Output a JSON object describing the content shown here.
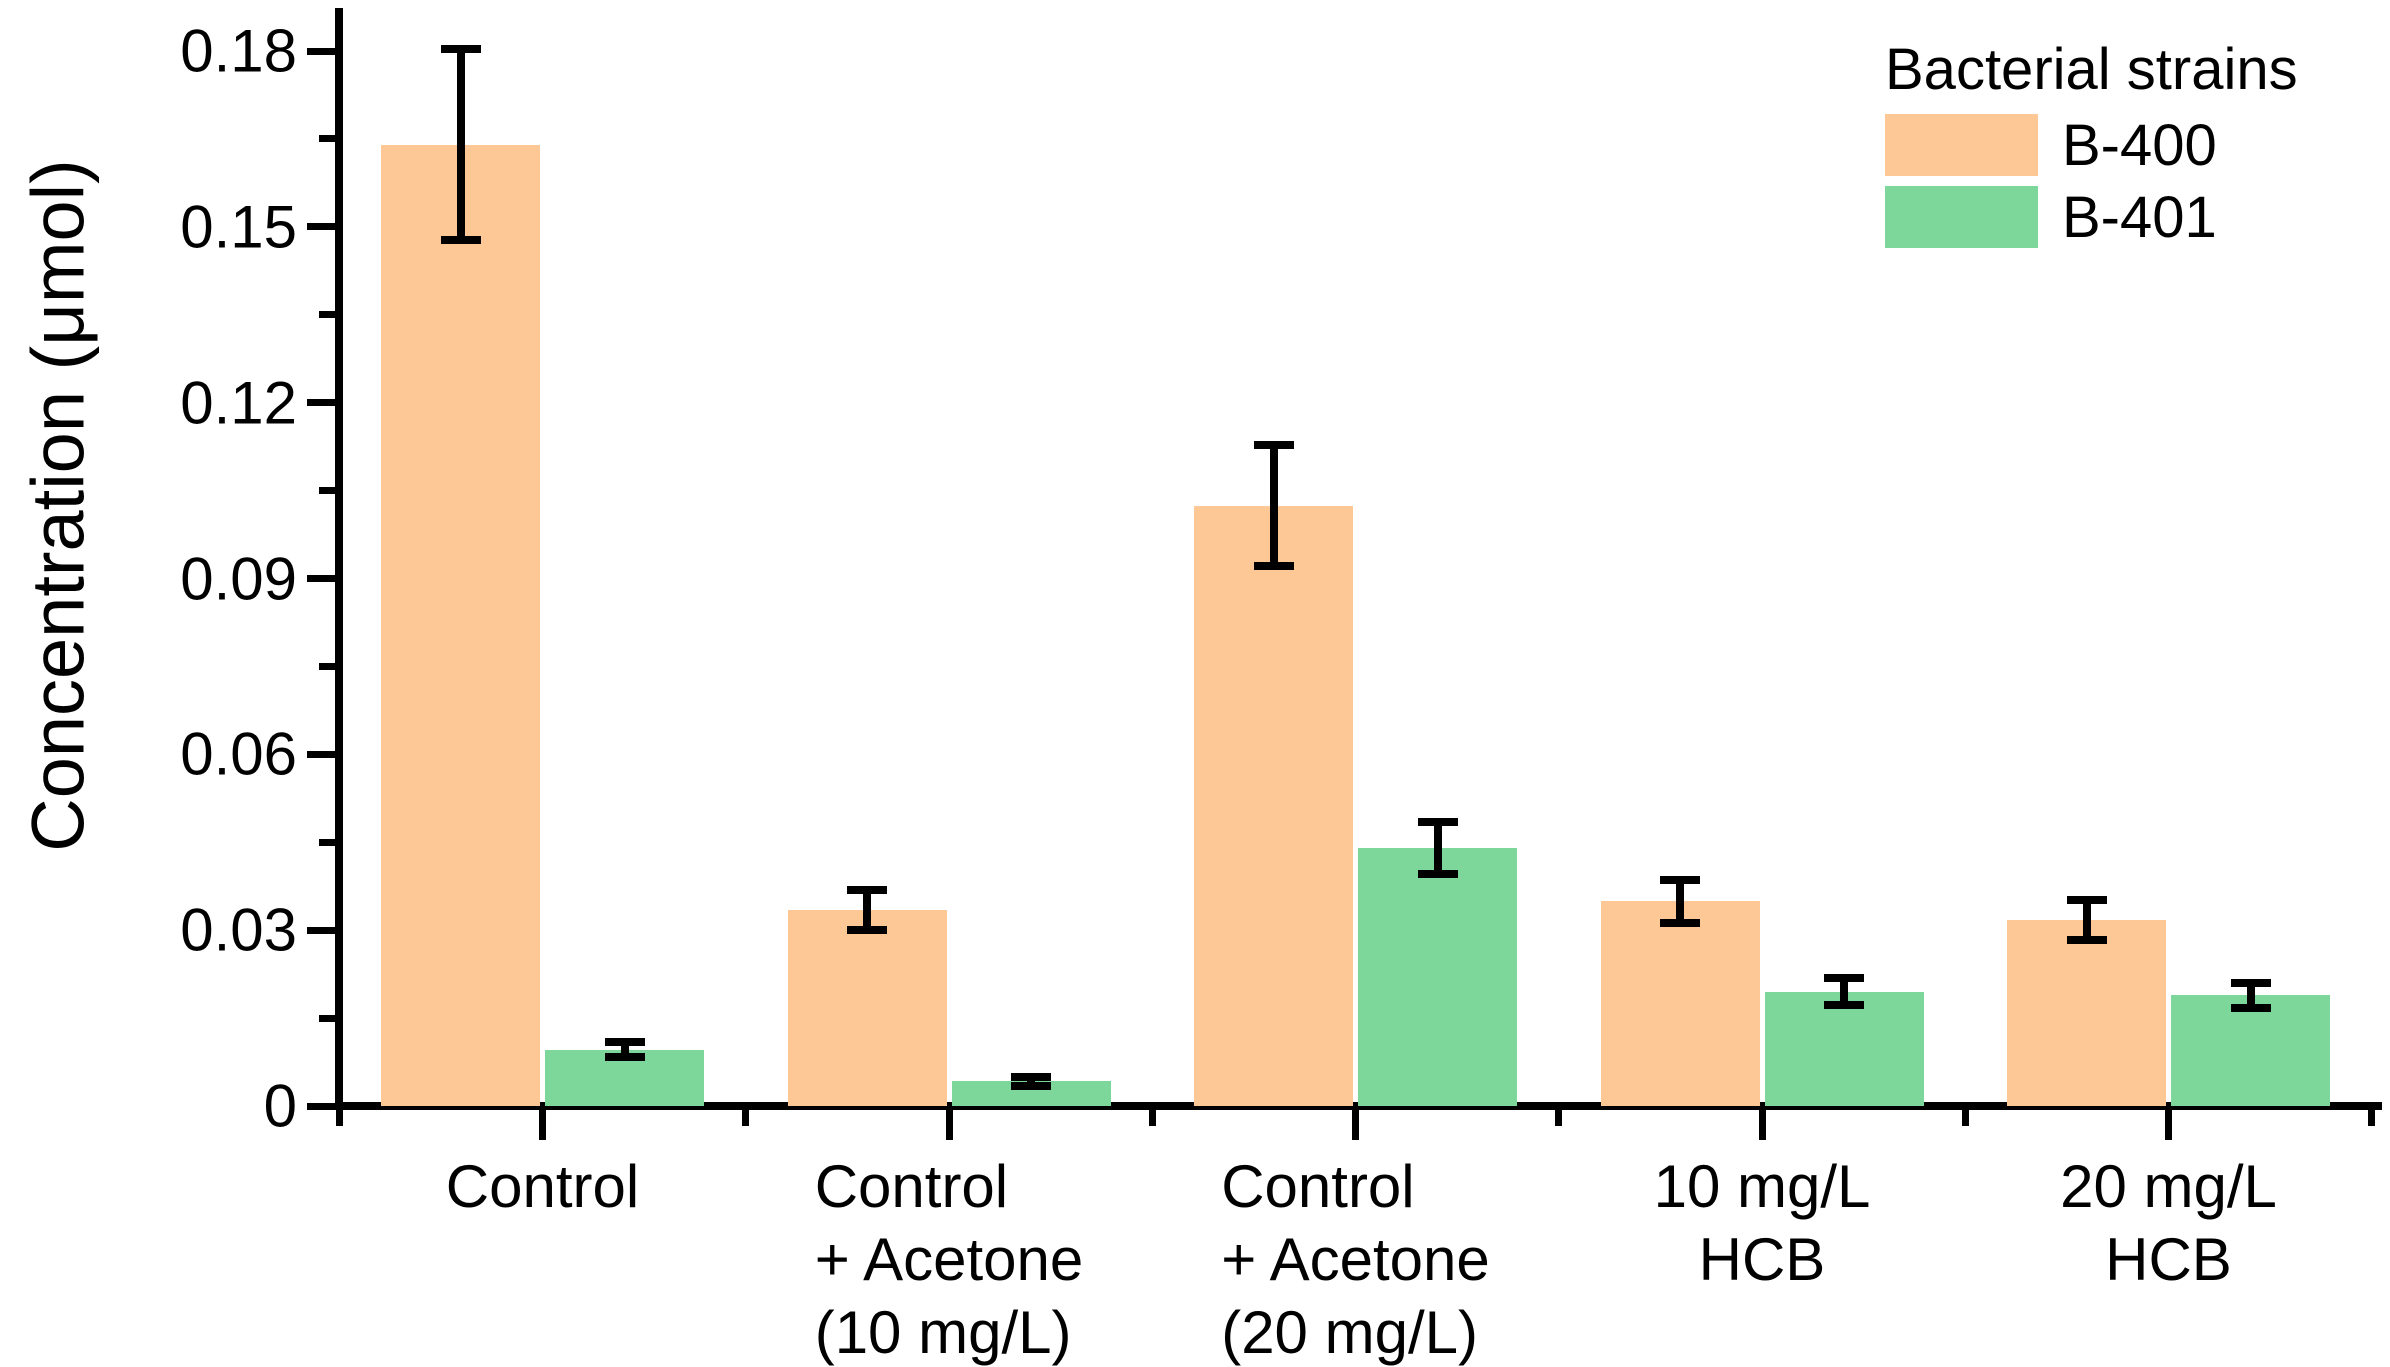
{
  "figure": {
    "background": "#ffffff",
    "axis_color": "#000000"
  },
  "chart_data": {
    "type": "bar",
    "title": "",
    "xlabel": "",
    "ylabel": "Concentration (μmol)",
    "ylim": [
      0,
      0.187
    ],
    "grid": false,
    "legend": {
      "title": "Bacterial strains",
      "position": "top-right"
    },
    "y_major_ticks": [
      0,
      0.03,
      0.06,
      0.09,
      0.12,
      0.15,
      0.18
    ],
    "y_tick_labels": [
      "0",
      "0.03",
      "0.06",
      "0.09",
      "0.12",
      "0.15",
      "0.18"
    ],
    "y_minor_tick_step": 0.015,
    "categories": [
      {
        "lines": [
          "Control"
        ]
      },
      {
        "lines": [
          "Control",
          "+ Acetone",
          "(10 mg/L)"
        ]
      },
      {
        "lines": [
          "Control",
          "+ Acetone",
          "(20 mg/L)"
        ]
      },
      {
        "lines": [
          "10 mg/L",
          "HCB"
        ]
      },
      {
        "lines": [
          "20 mg/L",
          "HCB"
        ]
      }
    ],
    "series": [
      {
        "name": "B-400",
        "color": "#FDC896",
        "values": [
          0.164,
          0.0334,
          0.1024,
          0.0349,
          0.0317
        ],
        "errors": [
          0.0163,
          0.0034,
          0.0103,
          0.0036,
          0.0034
        ]
      },
      {
        "name": "B-401",
        "color": "#7DD69A",
        "values": [
          0.0096,
          0.0042,
          0.044,
          0.0195,
          0.0189
        ],
        "errors": [
          0.0013,
          0.0008,
          0.0044,
          0.0023,
          0.0021
        ]
      }
    ]
  }
}
